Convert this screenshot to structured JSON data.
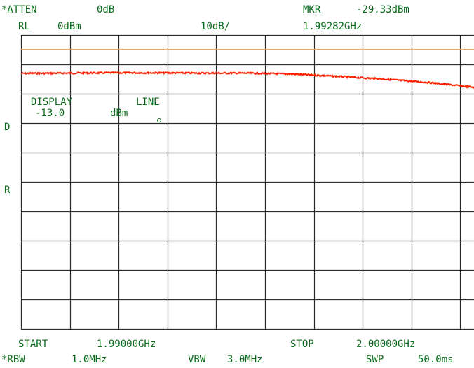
{
  "header": {
    "atten_label": "*ATTEN",
    "atten_value": "0dB",
    "rl_label": "RL",
    "rl_value": "0dBm",
    "scale": "10dB/",
    "marker_label": "MKR",
    "marker_amplitude": "-29.33dBm",
    "marker_frequency": "1.99282GHz"
  },
  "display_line": {
    "label_display": "DISPLAY",
    "label_line": "LINE",
    "value": "-13.0",
    "unit": "dBm"
  },
  "side_markers": {
    "d": "D",
    "r": "R"
  },
  "footer": {
    "start_label": "START",
    "start_value": "1.99000GHz",
    "stop_label": "STOP",
    "stop_value": "2.00000GHz",
    "rbw_label": "*RBW",
    "rbw_value": "1.0MHz",
    "vbw_label": "VBW",
    "vbw_value": "3.0MHz",
    "swp_label": "SWP",
    "swp_value": "50.0ms"
  },
  "colors": {
    "text": "#0b6b1c",
    "grid": "#2a2a2a",
    "trace": "#ff2200",
    "limit_line": "#f4a35a"
  },
  "chart_data": {
    "type": "line",
    "x_start_ghz": 1.99,
    "x_stop_ghz": 2.0,
    "reference_level_dbm": 0,
    "scale_db_per_div": 10,
    "horizontal_divisions": 9,
    "vertical_divisions": 10,
    "limit_line_dbm": -5.0,
    "display_line_dbm": -13.0,
    "trace": {
      "x_ghz": [
        1.99,
        1.991,
        1.992,
        1.993,
        1.994,
        1.995,
        1.996,
        1.997,
        1.998,
        1.999,
        2.0
      ],
      "y_dbm": [
        -13.1,
        -13.0,
        -12.9,
        -12.9,
        -13.0,
        -13.0,
        -13.3,
        -14.1,
        -15.0,
        -16.2,
        -17.8
      ]
    },
    "marker": {
      "x_ghz": 1.99282,
      "y_dbm": -29.33
    },
    "grid": true
  }
}
